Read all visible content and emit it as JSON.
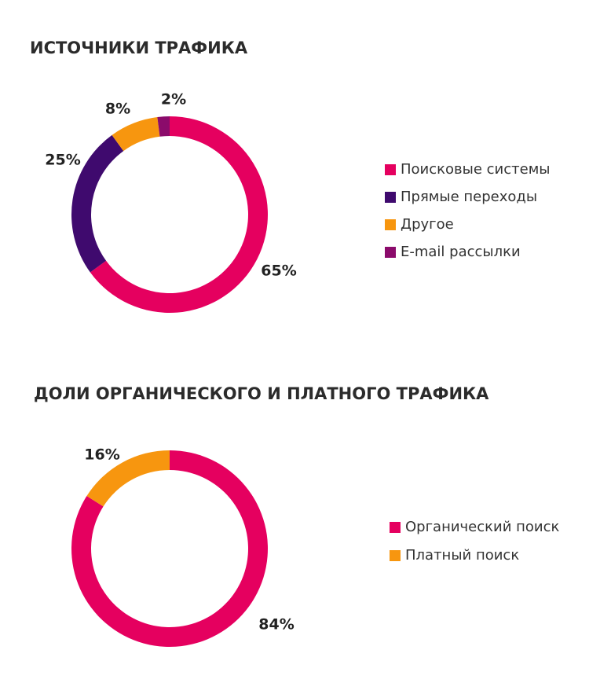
{
  "chart_data": [
    {
      "type": "pie",
      "title": "ИСТОЧНИКИ ТРАФИКА",
      "categories": [
        "Поисковые системы",
        "Прямые переходы",
        "Другое",
        "E-mail рассылки"
      ],
      "values": [
        65,
        25,
        8,
        2
      ],
      "value_labels": [
        "65%",
        "25%",
        "8%",
        "2%"
      ],
      "colors": [
        "#e5005f",
        "#3f0a6e",
        "#f7960f",
        "#8b0b6b"
      ]
    },
    {
      "type": "pie",
      "title": "ДОЛИ ОРГАНИЧЕСКОГО И ПЛАТНОГО ТРАФИКА",
      "categories": [
        "Органический поиск",
        "Платный поиск"
      ],
      "values": [
        84,
        16
      ],
      "value_labels": [
        "84%",
        "16%"
      ],
      "colors": [
        "#e5005f",
        "#f7960f"
      ]
    }
  ]
}
